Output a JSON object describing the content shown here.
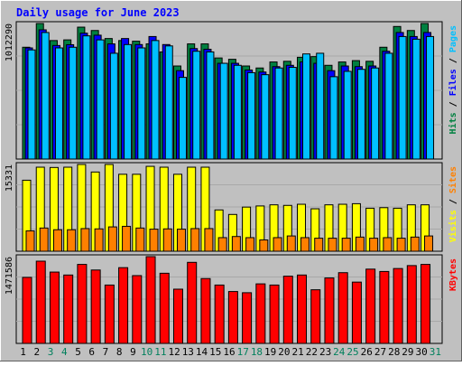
{
  "chart_data": {
    "type": "bar",
    "title": "Daily usage for June 2023",
    "x": [
      "1",
      "2",
      "3",
      "4",
      "5",
      "6",
      "7",
      "8",
      "9",
      "10",
      "11",
      "12",
      "13",
      "14",
      "15",
      "16",
      "17",
      "18",
      "19",
      "20",
      "21",
      "22",
      "23",
      "24",
      "25",
      "26",
      "27",
      "28",
      "29",
      "30",
      "31"
    ],
    "weekend_days": [
      "3",
      "4",
      "10",
      "11",
      "17",
      "18",
      "24",
      "25",
      "31"
    ],
    "panels": [
      {
        "id": "top",
        "scale_label": "1012290",
        "ylim": [
          0,
          1012290
        ],
        "legend": [
          {
            "text": "Hits",
            "color": "#008040"
          },
          {
            "text": " / ",
            "color": "#000000"
          },
          {
            "text": "Files",
            "color": "#0000ff"
          },
          {
            "text": " / ",
            "color": "#000000"
          },
          {
            "text": "Pages",
            "color": "#00c0ff"
          }
        ],
        "series": [
          {
            "name": "Hits",
            "color": "#008040",
            "values": [
              835000,
              1012290,
              885000,
              890000,
              985000,
              960000,
              900000,
              885000,
              880000,
              860000,
              800000,
              695000,
              860000,
              860000,
              755000,
              745000,
              695000,
              680000,
              725000,
              730000,
              760000,
              765000,
              700000,
              725000,
              735000,
              730000,
              835000,
              990000,
              960000,
              1012290,
              0
            ]
          },
          {
            "name": "Files",
            "color": "#0000ff",
            "values": [
              830000,
              965000,
              848000,
              854000,
              940000,
              925000,
              860000,
              900000,
              855000,
              915000,
              855000,
              660000,
              825000,
              820000,
              715000,
              715000,
              665000,
              650000,
              690000,
              700000,
              725000,
              715000,
              660000,
              695000,
              690000,
              695000,
              805000,
              945000,
              915000,
              945000,
              0
            ]
          },
          {
            "name": "Pages",
            "color": "#00c0ff",
            "values": [
              815000,
              945000,
              830000,
              835000,
              920000,
              890000,
              790000,
              855000,
              830000,
              885000,
              845000,
              610000,
              805000,
              800000,
              715000,
              700000,
              645000,
              630000,
              680000,
              685000,
              785000,
              790000,
              615000,
              655000,
              670000,
              680000,
              790000,
              915000,
              895000,
              915000,
              0
            ]
          }
        ]
      },
      {
        "id": "middle",
        "scale_label": "15331",
        "ylim": [
          0,
          15331
        ],
        "legend": [
          {
            "text": "Visits",
            "color": "#ffff00"
          },
          {
            "text": " / ",
            "color": "#000000"
          },
          {
            "text": "Sites",
            "color": "#ff8000"
          }
        ],
        "series": [
          {
            "name": "Visits",
            "color": "#ffff00",
            "values": [
              12550,
              14850,
              14800,
              14850,
              15331,
              14000,
              15331,
              13600,
              13600,
              15000,
              14850,
              13600,
              14850,
              14850,
              7300,
              6500,
              7800,
              8000,
              8200,
              8100,
              8300,
              7500,
              8200,
              8300,
              8400,
              7600,
              7700,
              7600,
              8200,
              8200,
              0
            ]
          },
          {
            "name": "Sites",
            "color": "#ff8000",
            "values": [
              3600,
              4100,
              3800,
              3800,
              4000,
              3950,
              4300,
              4400,
              4100,
              3900,
              3950,
              3900,
              4000,
              4000,
              2400,
              2600,
              2400,
              2000,
              2400,
              2700,
              2400,
              2300,
              2300,
              2300,
              2500,
              2300,
              2400,
              2300,
              2500,
              2700,
              0
            ]
          }
        ]
      },
      {
        "id": "bottom",
        "scale_label": "1471586",
        "ylim": [
          0,
          1471586
        ],
        "legend": [
          {
            "text": "KBytes",
            "color": "#ff0000"
          }
        ],
        "series": [
          {
            "name": "KBytes",
            "color": "#ff0000",
            "values": [
              1120000,
              1395000,
              1210000,
              1160000,
              1340000,
              1245000,
              990000,
              1285000,
              1150000,
              1471586,
              1190000,
              920000,
              1375000,
              1100000,
              990000,
              880000,
              860000,
              1010000,
              990000,
              1140000,
              1160000,
              910000,
              1110000,
              1200000,
              1040000,
              1260000,
              1220000,
              1270000,
              1320000,
              1340000,
              0
            ]
          }
        ]
      }
    ],
    "grid": true,
    "colors": {
      "background": "#c0c0c0",
      "title": "#0000ff",
      "weekday_label": "#000000",
      "weekend_label": "#00805c"
    }
  }
}
